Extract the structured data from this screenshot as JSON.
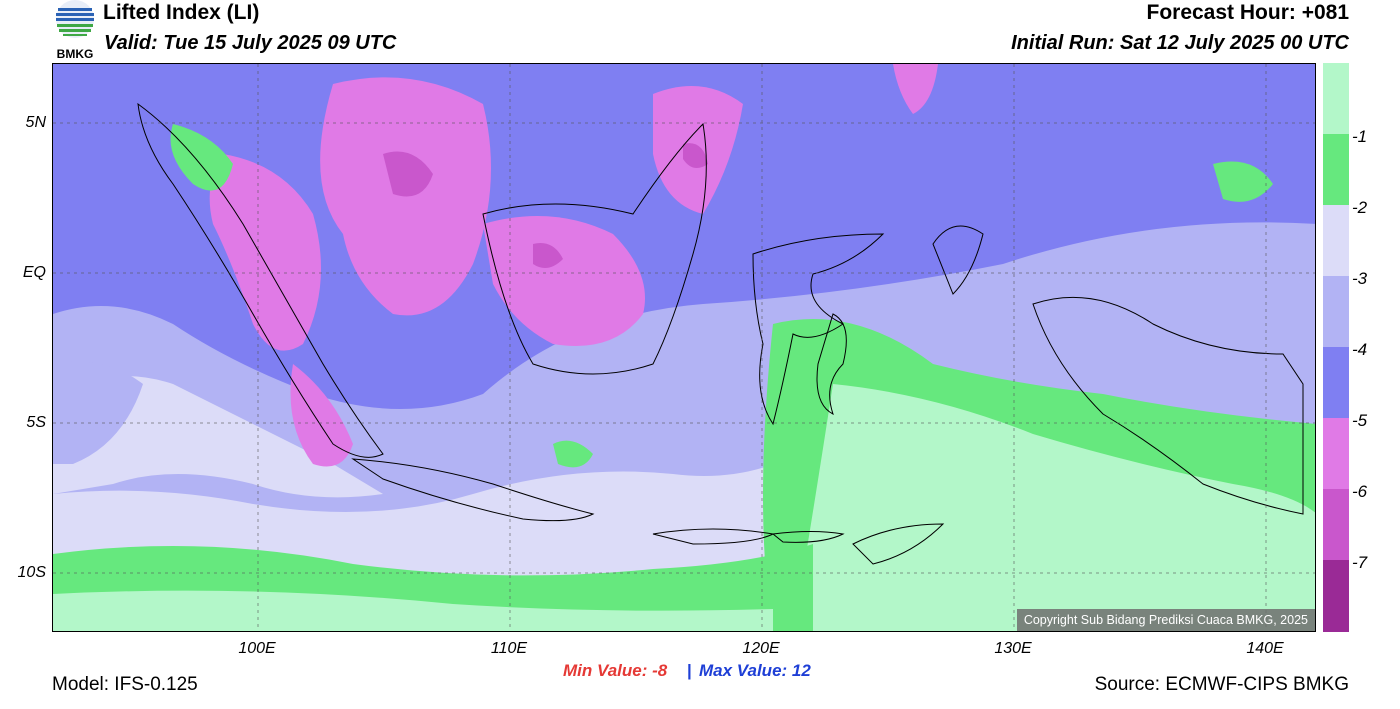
{
  "header": {
    "title": "Lifted Index (LI)",
    "valid": "Valid: Tue 15 July 2025 09 UTC",
    "forecast_hour": "Forecast Hour: +081",
    "initial_run": "Initial Run: Sat 12 July 2025 00 UTC"
  },
  "logo": {
    "text": "BMKG"
  },
  "axes": {
    "lat_labels": [
      "5N",
      "EQ",
      "5S",
      "10S"
    ],
    "lon_labels": [
      "100E",
      "110E",
      "120E",
      "130E",
      "140E"
    ]
  },
  "colorbar": {
    "labels": [
      "-1",
      "-2",
      "-3",
      "-4",
      "-5",
      "-6",
      "-7"
    ],
    "colors": [
      "#b3f7c9",
      "#66e87e",
      "#dcdcf8",
      "#b2b3f4",
      "#7f7ff2",
      "#e07ae6",
      "#c957cc",
      "#9a2a96"
    ]
  },
  "stats": {
    "min": "Min Value:  -8",
    "separator": "|",
    "max": "Max Value:  12"
  },
  "footer": {
    "model": "Model: IFS-0.125",
    "source": "Source: ECMWF-CIPS BMKG"
  },
  "copyright": "Copyright Sub Bidang Prediksi Cuaca BMKG, 2025"
}
